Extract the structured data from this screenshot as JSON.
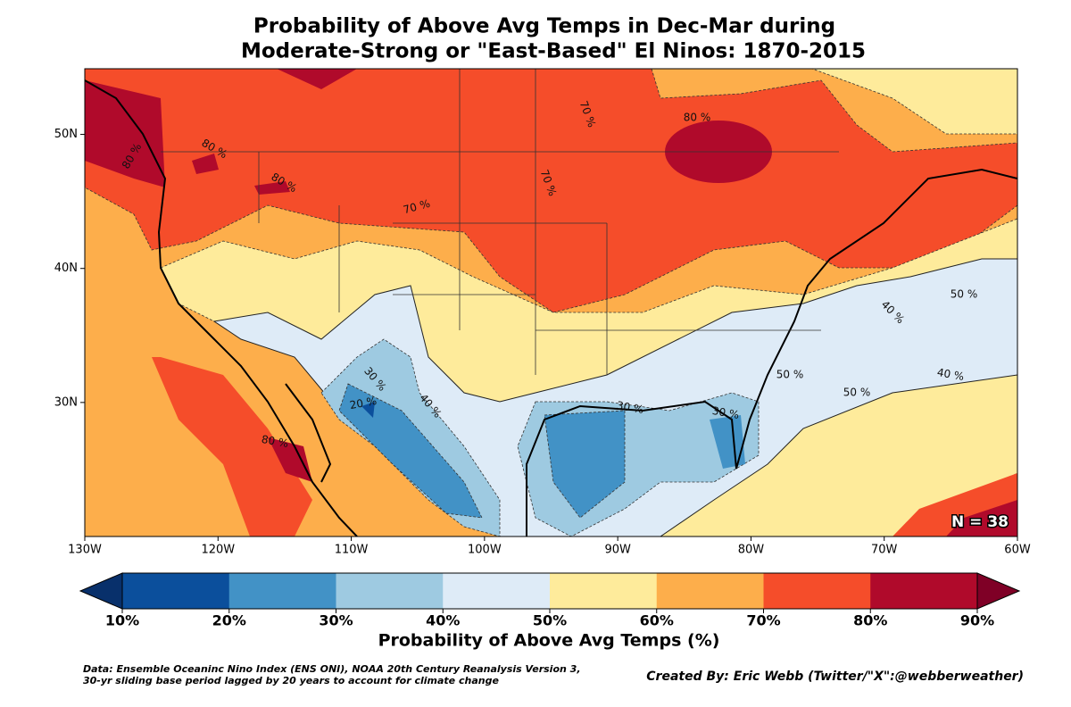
{
  "title": "Probability of Above Avg Temps in Dec-Mar during",
  "subtitle": "Moderate-Strong or \"East-Based\" El Ninos: 1870-2015",
  "map": {
    "lonlim": [
      -130,
      -60
    ],
    "latlim": [
      20,
      54.9
    ],
    "lonticks": [
      {
        "value": -130,
        "label": "130W"
      },
      {
        "value": -120,
        "label": "120W"
      },
      {
        "value": -110,
        "label": "110W"
      },
      {
        "value": -100,
        "label": "100W"
      },
      {
        "value": -90,
        "label": "90W"
      },
      {
        "value": -80,
        "label": "80W"
      },
      {
        "value": -70,
        "label": "70W"
      },
      {
        "value": -60,
        "label": "60W"
      }
    ],
    "latticks": [
      {
        "value": 30,
        "label": "30N"
      },
      {
        "value": 40,
        "label": "40N"
      },
      {
        "value": 50,
        "label": "50N"
      }
    ],
    "contour_labels": [
      "80 %",
      "80 %",
      "80 %",
      "70 %",
      "70 %",
      "80 %",
      "70 %",
      "50 %",
      "40 %",
      "50 %",
      "50 %",
      "40 %",
      "30 %",
      "40 %",
      "20 %",
      "30 %",
      "30 %",
      "80 %"
    ],
    "annotation": "N = 38"
  },
  "colorbar": {
    "label": "Probability of Above Avg Temps (%)",
    "ticks": [
      "10%",
      "20%",
      "30%",
      "40%",
      "50%",
      "60%",
      "70%",
      "80%",
      "90%"
    ],
    "colors": [
      "#0b4f9c",
      "#4292c6",
      "#9ecae1",
      "#deebf7",
      "#feeb9b",
      "#fdae4b",
      "#f54d2a",
      "#b00a2b"
    ],
    "under": "#08306b",
    "over": "#7f0026"
  },
  "footnote": "Data: Ensemble Oceaninc Nino Index (ENS ONI), NOAA 20th Century Reanalysis Version 3,",
  "footnote2": " 30-yr sliding base period lagged by 20 years to account for climate change",
  "credit": "Created By: Eric Webb (Twitter/\"X\":@webberweather)"
}
